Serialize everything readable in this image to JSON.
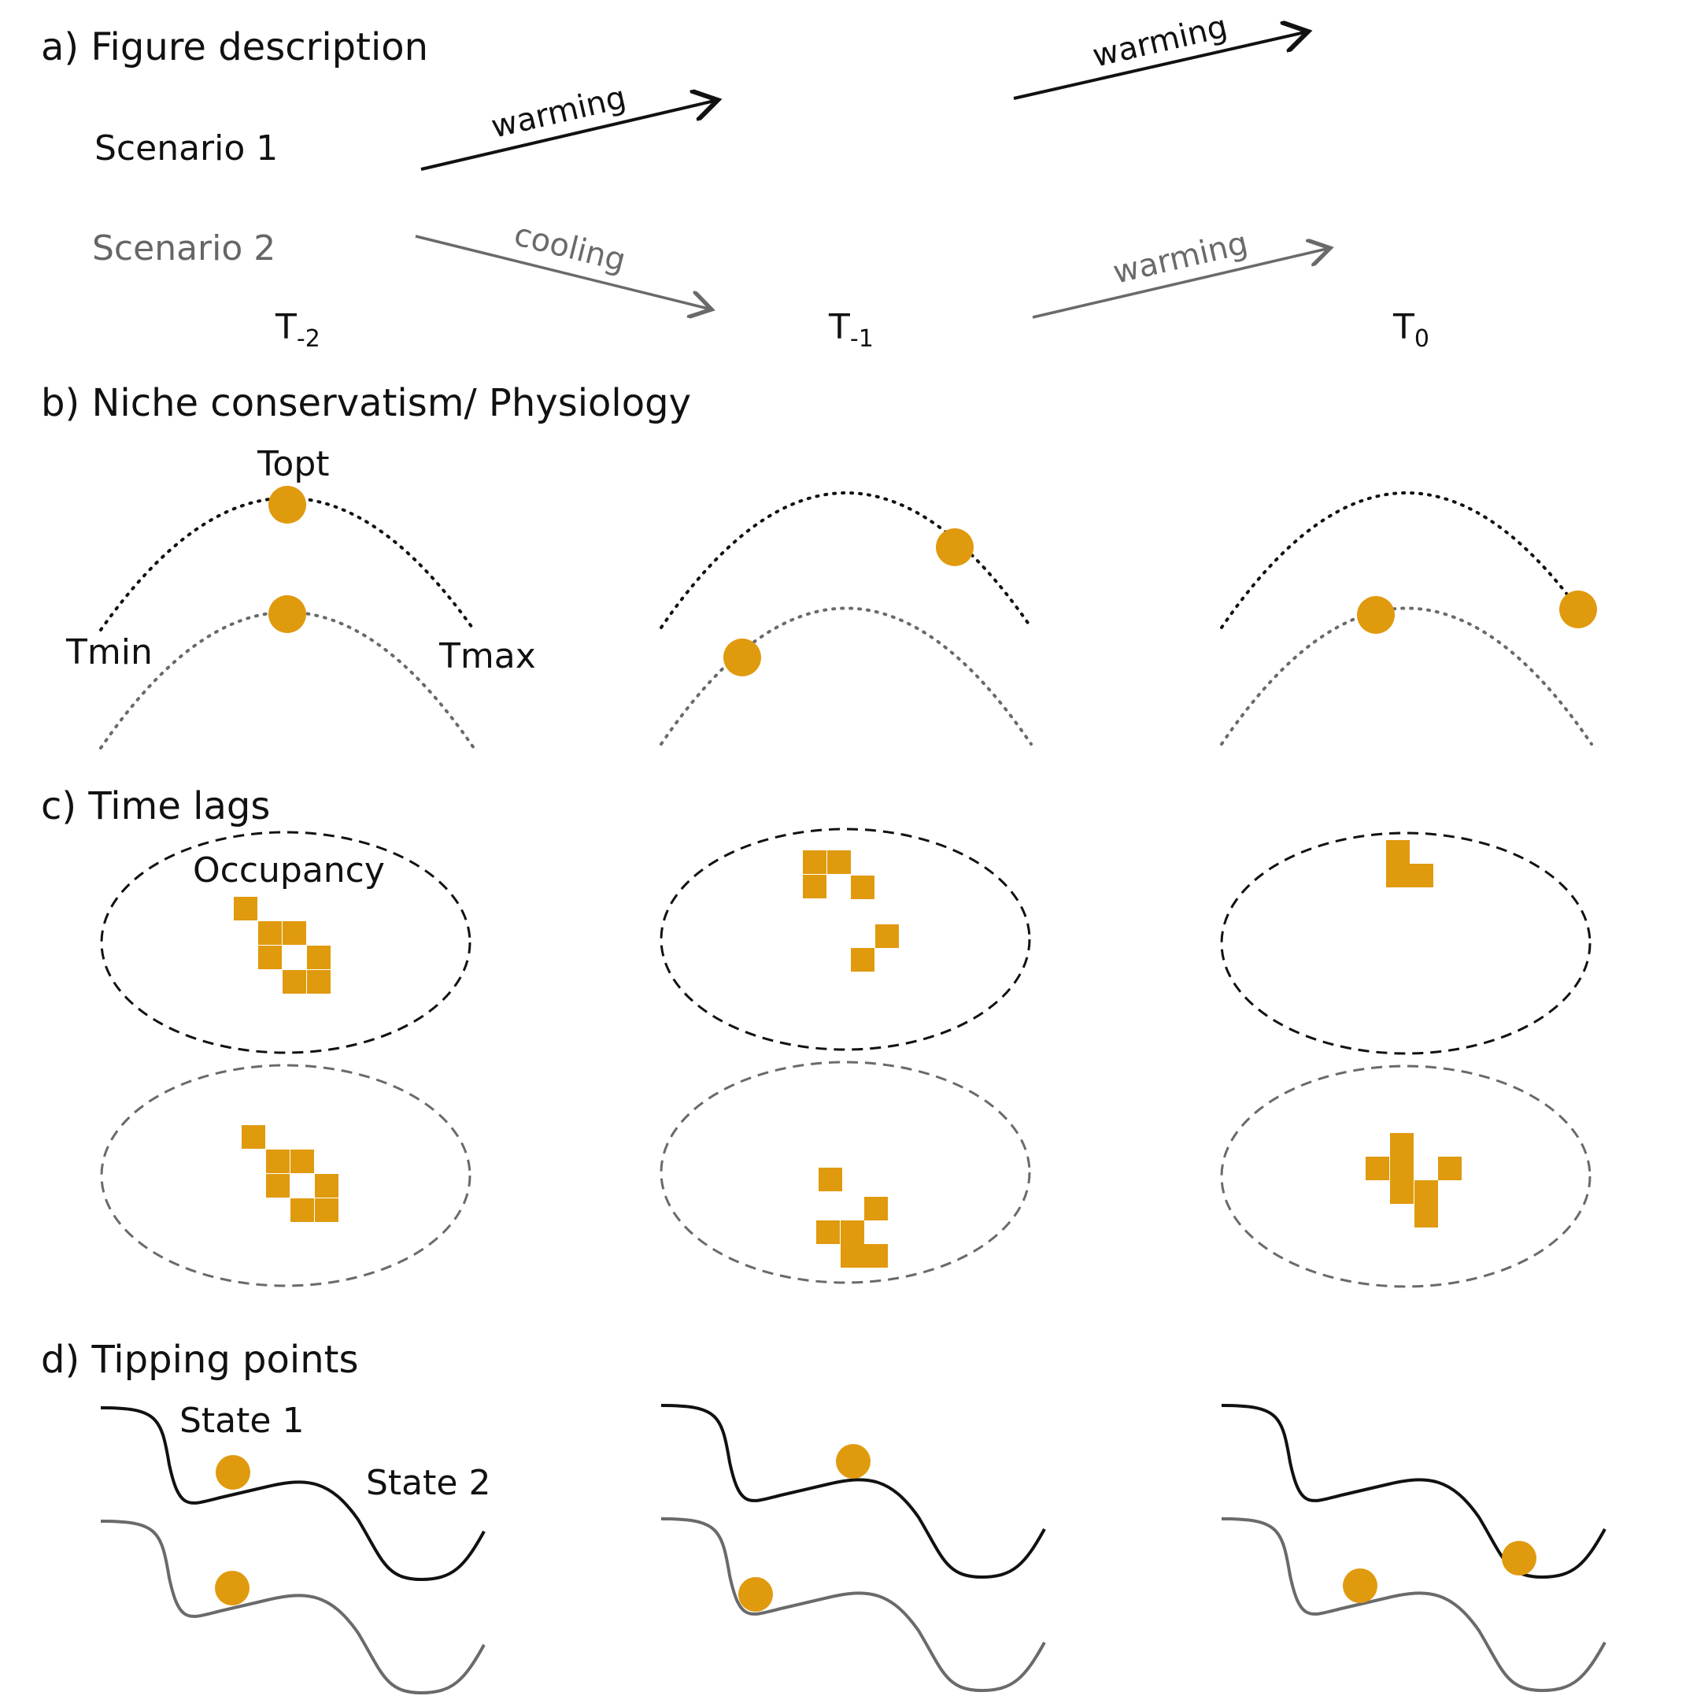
{
  "colors": {
    "scenario1": "#111111",
    "scenario2": "#6a6a6a",
    "orange": "#e09a0e",
    "background": "#ffffff"
  },
  "sections": {
    "a": "a) Figure description",
    "b": "b) Niche conservatism/ Physiology",
    "c": "c) Time lags",
    "d": "d) Tipping points"
  },
  "scenarios": {
    "s1": "Scenario 1",
    "s2": "Scenario 2"
  },
  "arrows": {
    "s1_first": "warming",
    "s1_second": "warming",
    "s2_first": "cooling",
    "s2_second": "warming"
  },
  "time_points": [
    {
      "base": "T",
      "sub": "-2"
    },
    {
      "base": "T",
      "sub": "-1"
    },
    {
      "base": "T",
      "sub": "0"
    }
  ],
  "niche_labels": {
    "topt": "Topt",
    "tmin": "Tmin",
    "tmax": "Tmax"
  },
  "time_lag_labels": {
    "occupancy": "Occupancy"
  },
  "tipping_labels": {
    "state1": "State 1",
    "state2": "State 2"
  }
}
